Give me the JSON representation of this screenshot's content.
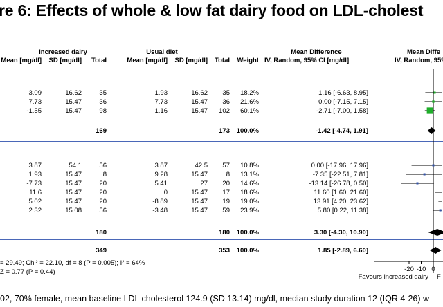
{
  "title": "re 6: Effects of whole & low fat dairy food on LDL-cholest",
  "groups": {
    "increased": "Increased dairy",
    "usual": "Usual diet",
    "md": "Mean Difference",
    "md_right": "Mean Diffe"
  },
  "headers": {
    "mean1": "Mean [mg/dl]",
    "sd1": "SD [mg/dl]",
    "total1": "Total",
    "mean2": "Mean [mg/dl]",
    "sd2": "SD [mg/dl]",
    "total2": "Total",
    "weight": "Weight",
    "md_method": "IV, Random, 95% CI [mg/dl]",
    "md_method_right": "IV, Random, 95%"
  },
  "chart_data": {
    "type": "forest",
    "x_ticks": [
      "-20",
      "-10",
      "0"
    ],
    "x_label_left": "Favours increased dairy",
    "x_label_right": "F",
    "subgroups": [
      {
        "studies": [
          {
            "mean1": "3.09",
            "sd1": "16.62",
            "n1": "35",
            "mean2": "1.93",
            "sd2": "16.62",
            "n2": "35",
            "weight": "18.2%",
            "ci": "1.16 [-6.63, 8.95]",
            "md": 1.16,
            "lo": -6.63,
            "hi": 8.95
          },
          {
            "mean1": "7.73",
            "sd1": "15.47",
            "n1": "36",
            "mean2": "7.73",
            "sd2": "15.47",
            "n2": "36",
            "weight": "21.6%",
            "ci": "0.00 [-7.15, 7.15]",
            "md": 0.0,
            "lo": -7.15,
            "hi": 7.15
          },
          {
            "mean1": "-1.55",
            "sd1": "15.47",
            "n1": "98",
            "mean2": "1.16",
            "sd2": "15.47",
            "n2": "102",
            "weight": "60.1%",
            "ci": "-2.71 [-7.00, 1.58]",
            "md": -2.71,
            "lo": -7.0,
            "hi": 1.58
          }
        ],
        "subtotal": {
          "n1": "169",
          "n2": "173",
          "weight": "100.0%",
          "ci": "-1.42 [-4.74, 1.91]",
          "md": -1.42,
          "lo": -4.74,
          "hi": 1.91
        }
      },
      {
        "studies": [
          {
            "mean1": "3.87",
            "sd1": "54.1",
            "n1": "56",
            "mean2": "3.87",
            "sd2": "42.5",
            "n2": "57",
            "weight": "10.8%",
            "ci": "0.00 [-17.96, 17.96]",
            "md": 0.0,
            "lo": -17.96,
            "hi": 17.96
          },
          {
            "mean1": "1.93",
            "sd1": "15.47",
            "n1": "8",
            "mean2": "9.28",
            "sd2": "15.47",
            "n2": "8",
            "weight": "13.1%",
            "ci": "-7.35 [-22.51, 7.81]",
            "md": -7.35,
            "lo": -22.51,
            "hi": 7.81
          },
          {
            "mean1": "-7.73",
            "sd1": "15.47",
            "n1": "20",
            "mean2": "5.41",
            "sd2": "27",
            "n2": "20",
            "weight": "14.6%",
            "ci": "-13.14 [-26.78, 0.50]",
            "md": -13.14,
            "lo": -26.78,
            "hi": 0.5
          },
          {
            "mean1": "11.6",
            "sd1": "15.47",
            "n1": "20",
            "mean2": "0",
            "sd2": "15.47",
            "n2": "17",
            "weight": "18.6%",
            "ci": "11.60 [1.60, 21.60]",
            "md": 11.6,
            "lo": 1.6,
            "hi": 21.6
          },
          {
            "mean1": "5.02",
            "sd1": "15.47",
            "n1": "20",
            "mean2": "-8.89",
            "sd2": "15.47",
            "n2": "19",
            "weight": "19.0%",
            "ci": "13.91 [4.20, 23.62]",
            "md": 13.91,
            "lo": 4.2,
            "hi": 23.62
          },
          {
            "mean1": "2.32",
            "sd1": "15.08",
            "n1": "56",
            "mean2": "-3.48",
            "sd2": "15.47",
            "n2": "59",
            "weight": "23.9%",
            "ci": "5.80 [0.22, 11.38]",
            "md": 5.8,
            "lo": 0.22,
            "hi": 11.38
          }
        ],
        "subtotal": {
          "n1": "180",
          "n2": "180",
          "weight": "100.0%",
          "ci": "3.30 [-4.30, 10.90]",
          "md": 3.3,
          "lo": -4.3,
          "hi": 10.9
        }
      }
    ],
    "overall": {
      "n1": "349",
      "n2": "353",
      "weight": "100.0%",
      "ci": "1.85 [-2.89, 6.60]",
      "md": 1.85,
      "lo": -2.89,
      "hi": 6.6
    }
  },
  "footer": {
    "heterogeneity": "= 29.49; Chi² = 22.10, df = 8 (P = 0.005); I² = 64%",
    "overall_test": "Z = 0.77 (P = 0.44)"
  },
  "caption": "02, 70% female, mean baseline LDL cholesterol 124.9 (SD 13.14) mg/dl, median study duration 12 (IQR 4-26) w",
  "colors": {
    "marker": "#1fae2a",
    "marker_blue": "#3454a8",
    "rule": "#4a67b8"
  }
}
